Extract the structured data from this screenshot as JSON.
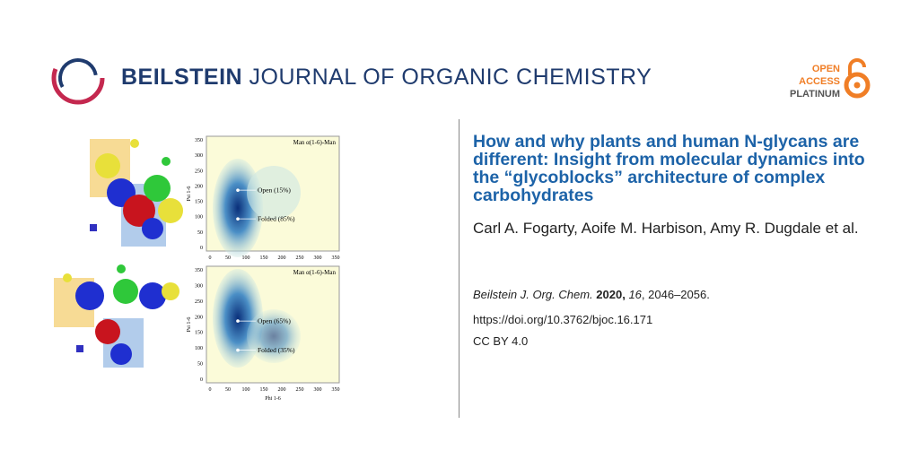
{
  "header": {
    "journal_bold": "BEILSTEIN",
    "journal_rest": "JOURNAL OF ORGANIC CHEMISTRY",
    "badge": [
      "OPEN",
      "ACCESS",
      "PLATINUM"
    ]
  },
  "figure": {
    "panels": [
      {
        "title": "Man α(1-6)-Man",
        "labels": [
          "Open (15%)",
          "Folded (85%)"
        ],
        "ylabel": "Psi 1-6",
        "yticks": [
          "350",
          "300",
          "250",
          "200",
          "150",
          "100",
          "50",
          "0"
        ],
        "xticks": [
          "0",
          "50",
          "100",
          "150",
          "200",
          "250",
          "300",
          "350"
        ]
      },
      {
        "title": "Man α(1-6)-Man",
        "labels": [
          "Open (65%)",
          "Folded (35%)"
        ],
        "ylabel": "Psi 1-6",
        "xlabel": "Phi 1-6",
        "yticks": [
          "350",
          "300",
          "250",
          "200",
          "150",
          "100",
          "50",
          "0"
        ],
        "xticks": [
          "0",
          "50",
          "100",
          "150",
          "200",
          "250",
          "300",
          "350"
        ]
      }
    ]
  },
  "article": {
    "title": "How and why plants and human N-glycans are different: Insight from molecular dynamics into the “glycoblocks” architecture of complex carbohydrates",
    "authors": "Carl A. Fogarty, Aoife M. Harbison, Amy R. Dugdale et al.",
    "citation": {
      "journal": "Beilstein J. Org. Chem.",
      "year": "2020,",
      "volume": "16",
      "pages": ", 2046–2056."
    },
    "doi": "https://doi.org/10.3762/bjoc.16.171",
    "license": "CC BY 4.0"
  }
}
